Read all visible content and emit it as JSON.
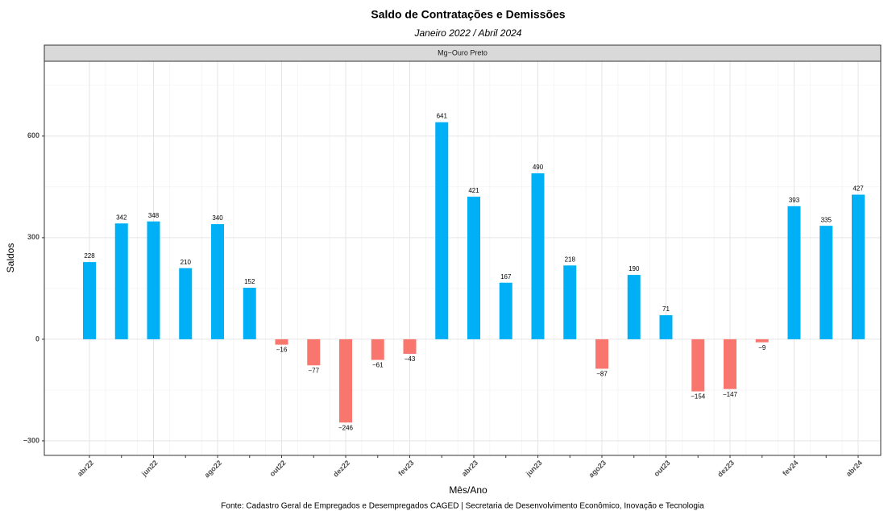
{
  "chart_data": {
    "type": "bar",
    "title": "Saldo de Contratações e Demissões",
    "subtitle": "Janeiro 2022 / Abril 2024",
    "panel_label": "Mg−Ouro Preto",
    "x_label": "Mês/Ano",
    "y_label": "Saldos",
    "caption": "Fonte: Cadastro Geral de Empregados e Desempregados CAGED | Secretaria de Desenvolvimento Econômico, Inovação e Tecnologia",
    "categories": [
      "abr22",
      null,
      "jun22",
      null,
      "ago22",
      null,
      "out22",
      null,
      "dez22",
      null,
      "fev23",
      null,
      "abr23",
      null,
      "jun23",
      null,
      "ago23",
      null,
      "out23",
      null,
      "dez23",
      null,
      "fev24",
      null,
      "abr24"
    ],
    "values": [
      228,
      342,
      348,
      210,
      340,
      152,
      -16,
      -77,
      -246,
      -61,
      -43,
      641,
      421,
      167,
      490,
      218,
      -87,
      190,
      71,
      -154,
      -147,
      -9,
      393,
      335,
      427
    ],
    "value_labels": [
      "228",
      "342",
      "348",
      "210",
      "340",
      "152",
      "−16",
      "−77",
      "−246",
      "−61",
      "−43",
      "641",
      "421",
      "167",
      "490",
      "218",
      "−87",
      "190",
      "71",
      "−154",
      "−147",
      "−9",
      "393",
      "335",
      "427"
    ],
    "positive_color": "#00b0f6",
    "negative_color": "#f8766d",
    "ylim": [
      -343,
      821
    ],
    "yticks": [
      {
        "value": -300,
        "label": "−300"
      },
      0,
      300,
      600
    ],
    "y_minor_ticks": [
      -150,
      150,
      450,
      750
    ],
    "grid": true
  }
}
